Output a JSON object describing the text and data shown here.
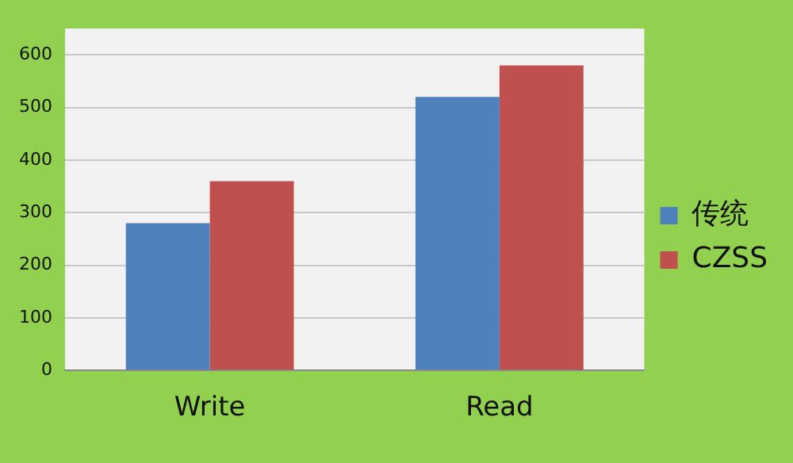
{
  "chart_data": {
    "type": "bar",
    "categories": [
      "Write",
      "Read"
    ],
    "series": [
      {
        "name": "传统",
        "color": "#4f81bd",
        "values": [
          280,
          520
        ]
      },
      {
        "name": "CZSS",
        "color": "#c0504d",
        "values": [
          360,
          580
        ]
      }
    ],
    "ylim": [
      0,
      650
    ],
    "yticks": [
      0,
      100,
      200,
      300,
      400,
      500,
      600
    ],
    "grid": "y",
    "legend": "right"
  }
}
